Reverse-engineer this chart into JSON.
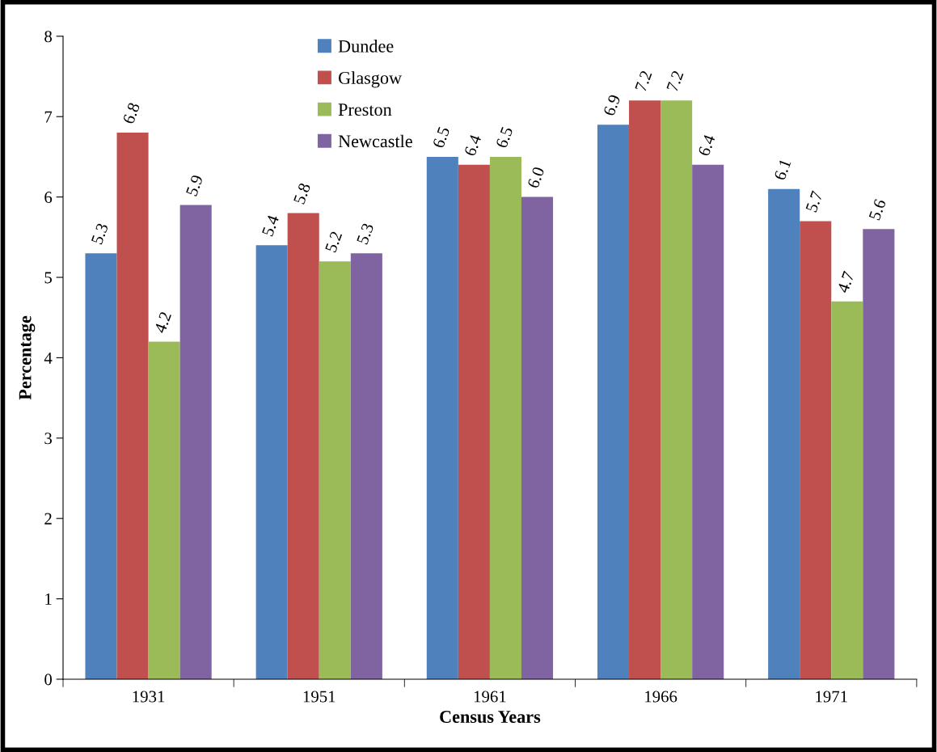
{
  "chart_data": {
    "type": "bar",
    "xlabel": "Census Years",
    "ylabel": "Percentage",
    "categories": [
      "1931",
      "1951",
      "1961",
      "1966",
      "1971"
    ],
    "series": [
      {
        "name": "Dundee",
        "color": "#4f81bd",
        "values": [
          5.3,
          5.4,
          6.5,
          6.9,
          6.1
        ],
        "value_labels": [
          "5.3",
          "5.4",
          "6.5",
          "6.9",
          "6.1"
        ]
      },
      {
        "name": "Glasgow",
        "color": "#c0504d",
        "values": [
          6.8,
          5.8,
          6.4,
          7.2,
          5.7
        ],
        "value_labels": [
          "6.8",
          "5.8",
          "6.4",
          "7.2",
          "5.7"
        ]
      },
      {
        "name": "Preston",
        "color": "#9bbb59",
        "values": [
          4.2,
          5.2,
          6.5,
          7.2,
          4.7
        ],
        "value_labels": [
          "4.2",
          "5.2",
          "6.5",
          "7.2",
          "4.7"
        ]
      },
      {
        "name": "Newcastle",
        "color": "#8064a2",
        "values": [
          5.9,
          5.3,
          6.0,
          6.4,
          5.6
        ],
        "value_labels": [
          "5.9",
          "5.3",
          "6.0",
          "6.4",
          "5.6"
        ]
      }
    ],
    "ylim": [
      0,
      8
    ],
    "yticks": [
      0,
      1,
      2,
      3,
      4,
      5,
      6,
      7,
      8
    ],
    "grid": false,
    "legend": "top"
  }
}
